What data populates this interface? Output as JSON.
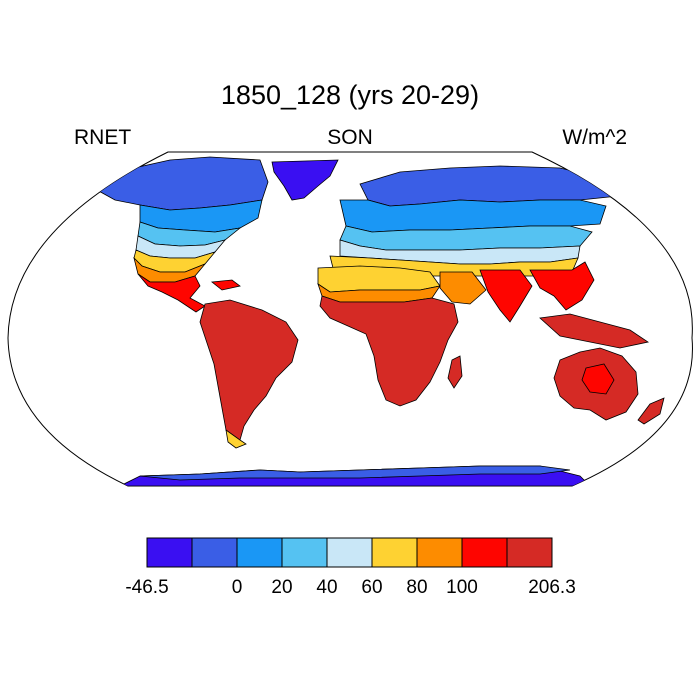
{
  "title": "1850_128 (yrs 20-29)",
  "left_label": "RNET",
  "center_label": "SON",
  "right_label": "W/m^2",
  "colorbar": {
    "colors": [
      "#3a0ff2",
      "#3a5ee6",
      "#1a97f5",
      "#55c2f2",
      "#c9e7f7",
      "#fed232",
      "#fd8c00",
      "#fe0500",
      "#d52a25"
    ],
    "tick_labels": [
      "-46.5",
      "0",
      "20",
      "40",
      "60",
      "80",
      "100",
      "206.3"
    ]
  },
  "colors": {
    "ocean": "#ffffff",
    "coast": "#000000"
  }
}
